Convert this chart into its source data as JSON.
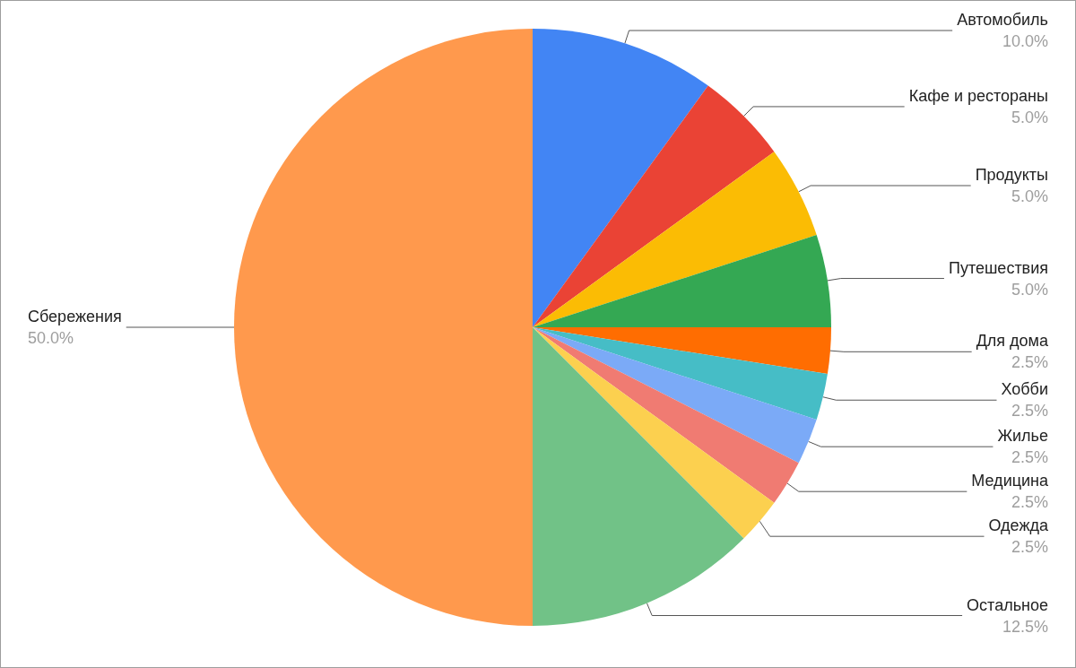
{
  "chart_data": {
    "type": "pie",
    "categories": [
      "Автомобиль",
      "Кафе и рестораны",
      "Продукты",
      "Путешествия",
      "Для дома",
      "Хобби",
      "Жилье",
      "Медицина",
      "Одежда",
      "Остальное",
      "Сбережения"
    ],
    "values": [
      10,
      5,
      5,
      5,
      2.5,
      2.5,
      2.5,
      2.5,
      2.5,
      12.5,
      50
    ],
    "value_labels": [
      "10.0%",
      "5.0%",
      "5.0%",
      "5.0%",
      "2.5%",
      "2.5%",
      "2.5%",
      "2.5%",
      "2.5%",
      "12.5%",
      "50.0%"
    ],
    "colors": [
      "#4285f4",
      "#ea4335",
      "#fbbc04",
      "#34a853",
      "#ff6d01",
      "#46bdc6",
      "#7baaf7",
      "#f07b72",
      "#fcd04f",
      "#71c287",
      "#ff994d"
    ],
    "legend": false
  }
}
